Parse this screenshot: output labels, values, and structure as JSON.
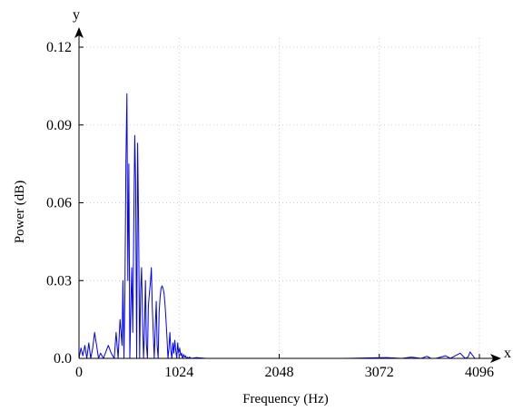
{
  "chart_data": {
    "type": "line",
    "title": "",
    "xlabel": "Frequency (Hz)",
    "ylabel": "Power (dB)",
    "x_axis_letter": "x",
    "y_axis_letter": "y",
    "xlim": [
      0,
      4096
    ],
    "ylim": [
      0,
      0.12
    ],
    "x_ticks": [
      0,
      1024,
      2048,
      3072,
      4096
    ],
    "x_tick_labels": [
      "0",
      "1024",
      "2048",
      "3072",
      "4096"
    ],
    "y_ticks": [
      0,
      0.03,
      0.06,
      0.09,
      0.12
    ],
    "y_tick_labels": [
      "0.0",
      "0.03",
      "0.06",
      "0.09",
      "0.12"
    ],
    "grid": true,
    "series": [
      {
        "color": "#0000ff",
        "x": [
          0,
          20,
          40,
          60,
          80,
          100,
          120,
          140,
          160,
          180,
          200,
          220,
          250,
          280,
          300,
          330,
          360,
          380,
          400,
          420,
          440,
          450,
          460,
          470,
          480,
          490,
          500,
          510,
          520,
          530,
          540,
          550,
          560,
          570,
          580,
          590,
          600,
          610,
          620,
          630,
          640,
          650,
          660,
          670,
          680,
          690,
          700,
          710,
          720,
          730,
          740,
          750,
          760,
          770,
          780,
          790,
          800,
          810,
          820,
          830,
          840,
          850,
          860,
          870,
          880,
          890,
          900,
          910,
          920,
          930,
          940,
          950,
          960,
          970,
          980,
          990,
          1000,
          1010,
          1020,
          1030,
          1040,
          1050,
          1060,
          1070,
          1080,
          1090,
          1100,
          1110,
          1120,
          1130,
          1150,
          1200,
          1300,
          1500,
          1800,
          2100,
          2400,
          2700,
          3000,
          3150,
          3300,
          3400,
          3500,
          3560,
          3600,
          3650,
          3700,
          3750,
          3800,
          3850,
          3900,
          3950,
          3980,
          4000,
          4050,
          4096
        ],
        "y": [
          0.0,
          0.004,
          0.001,
          0.005,
          0.0,
          0.006,
          0.0,
          0.004,
          0.01,
          0.005,
          0.0,
          0.002,
          0.0,
          0.003,
          0.005,
          0.002,
          0.0,
          0.01,
          0.0,
          0.015,
          0.005,
          0.03,
          0.0,
          0.026,
          0.076,
          0.102,
          0.03,
          0.075,
          0.0,
          0.02,
          0.035,
          0.01,
          0.05,
          0.086,
          0.067,
          0.0,
          0.083,
          0.05,
          0.0,
          0.025,
          0.035,
          0.015,
          0.0,
          0.01,
          0.03,
          0.005,
          0.0,
          0.02,
          0.025,
          0.029,
          0.035,
          0.02,
          0.01,
          0.0,
          0.012,
          0.022,
          0.005,
          0.0,
          0.018,
          0.024,
          0.027,
          0.028,
          0.027,
          0.025,
          0.021,
          0.015,
          0.008,
          0.0,
          0.004,
          0.01,
          0.003,
          0.0,
          0.006,
          0.002,
          0.007,
          0.003,
          0.0,
          0.006,
          0.002,
          0.004,
          0.001,
          0.002,
          0.0,
          0.0015,
          0.0005,
          0.001,
          0.0,
          0.0005,
          0.0,
          0.0005,
          0.0,
          0.0003,
          0.0,
          0.0,
          0.0,
          0.0,
          0.0,
          0.0,
          0.0002,
          0.0003,
          0.0,
          0.0005,
          0.0,
          0.0008,
          0.0,
          0.0,
          0.0005,
          0.001,
          0.0,
          0.001,
          0.002,
          0.0,
          0.0005,
          0.0025,
          0.0,
          0.0
        ]
      }
    ]
  }
}
